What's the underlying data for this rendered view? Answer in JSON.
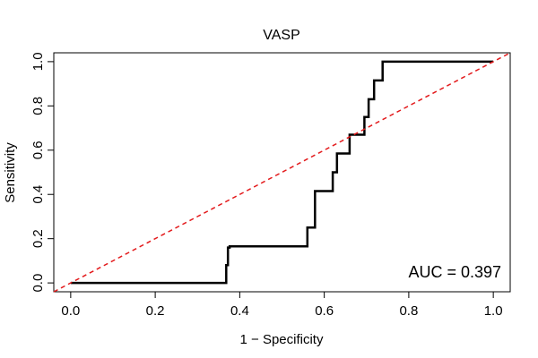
{
  "chart_data": {
    "type": "line",
    "title": "VASP",
    "xlabel": "1 − Specificity",
    "ylabel": "Sensitivity",
    "xlim": [
      -0.04,
      1.04
    ],
    "ylim": [
      -0.04,
      1.04
    ],
    "x_ticks": [
      0.0,
      0.2,
      0.4,
      0.6,
      0.8,
      1.0
    ],
    "y_ticks": [
      0.0,
      0.2,
      0.4,
      0.6,
      0.8,
      1.0
    ],
    "x_tick_labels": [
      "0.0",
      "0.2",
      "0.4",
      "0.6",
      "0.8",
      "1.0"
    ],
    "y_tick_labels": [
      "0.0",
      "0.2",
      "0.4",
      "0.6",
      "0.8",
      "1.0"
    ],
    "grid": false,
    "series": [
      {
        "color": "#000000",
        "style": "solid",
        "x": [
          0.0,
          0.368,
          0.368,
          0.372,
          0.372,
          0.376,
          0.376,
          0.56,
          0.56,
          0.578,
          0.578,
          0.62,
          0.62,
          0.625,
          0.625,
          0.63,
          0.63,
          0.635,
          0.635,
          0.66,
          0.66,
          0.695,
          0.695,
          0.705,
          0.705,
          0.71,
          0.71,
          0.718,
          0.718,
          0.725,
          0.725,
          0.738,
          0.738,
          0.745,
          1.0
        ],
        "y": [
          0.0,
          0.0,
          0.08,
          0.08,
          0.16,
          0.16,
          0.165,
          0.165,
          0.25,
          0.25,
          0.415,
          0.415,
          0.5,
          0.5,
          0.5,
          0.5,
          0.585,
          0.585,
          0.585,
          0.585,
          0.67,
          0.67,
          0.75,
          0.75,
          0.83,
          0.83,
          0.83,
          0.83,
          0.915,
          0.915,
          0.915,
          0.915,
          1.0,
          1.0,
          1.0
        ]
      },
      {
        "color": "#e31a1c",
        "style": "dashed",
        "x": [
          -0.04,
          1.04
        ],
        "y": [
          -0.04,
          1.04
        ]
      }
    ],
    "annotation": "AUC = 0.397"
  }
}
